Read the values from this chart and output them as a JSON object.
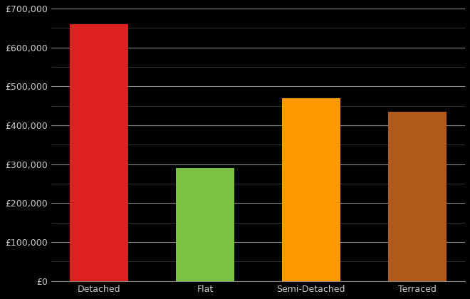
{
  "categories": [
    "Detached",
    "Flat",
    "Semi-Detached",
    "Terraced"
  ],
  "values": [
    660000,
    290000,
    470000,
    435000
  ],
  "bar_colors": [
    "#dd2020",
    "#7bc142",
    "#ff9900",
    "#b05a1a"
  ],
  "background_color": "#000000",
  "text_color": "#cccccc",
  "grid_color_major": "#888888",
  "grid_color_minor": "#444444",
  "ylim": [
    0,
    700000
  ],
  "ytick_major_step": 100000,
  "ytick_minor_step": 50000,
  "figsize": [
    6.6,
    4.2
  ],
  "dpi": 100,
  "bar_width": 0.55,
  "tick_fontsize": 9,
  "xlabel_fontsize": 9
}
